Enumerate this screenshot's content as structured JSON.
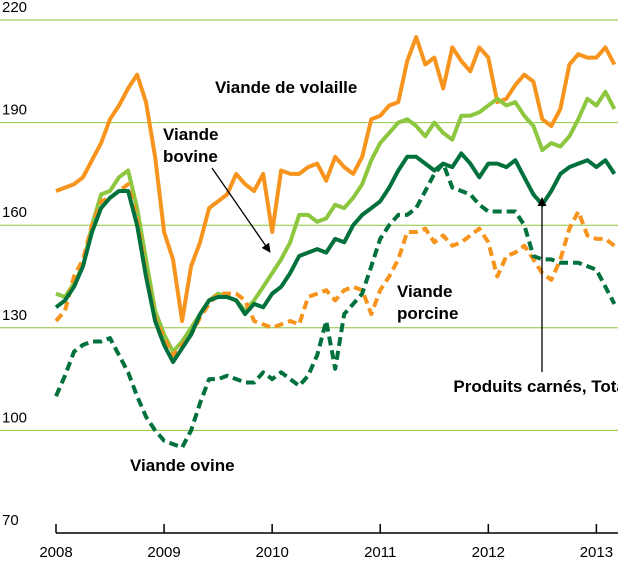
{
  "chart_data": {
    "type": "line",
    "x": [
      2008,
      2008.083,
      2008.167,
      2008.25,
      2008.333,
      2008.417,
      2008.5,
      2008.583,
      2008.667,
      2008.75,
      2008.833,
      2008.917,
      2009,
      2009.083,
      2009.167,
      2009.25,
      2009.333,
      2009.417,
      2009.5,
      2009.583,
      2009.667,
      2009.75,
      2009.833,
      2009.917,
      2010,
      2010.083,
      2010.167,
      2010.25,
      2010.333,
      2010.417,
      2010.5,
      2010.583,
      2010.667,
      2010.75,
      2010.833,
      2010.917,
      2011,
      2011.083,
      2011.167,
      2011.25,
      2011.333,
      2011.417,
      2011.5,
      2011.583,
      2011.667,
      2011.75,
      2011.833,
      2011.917,
      2012,
      2012.083,
      2012.167,
      2012.25,
      2012.333,
      2012.417,
      2012.5,
      2012.583,
      2012.667,
      2012.75,
      2012.833,
      2012.917,
      2013,
      2013.083,
      2013.167
    ],
    "series": [
      {
        "name": "Viande de volaille",
        "color": "#f7941d",
        "dashed": false,
        "values": [
          170,
          171,
          172,
          174,
          179,
          184,
          191,
          195,
          200,
          204,
          196,
          180,
          158,
          150,
          132,
          148,
          155,
          165,
          167,
          169,
          175,
          172,
          170,
          175,
          158,
          176,
          175,
          175,
          177,
          178,
          173,
          180,
          177,
          175,
          180,
          191,
          192,
          195,
          196,
          208,
          215,
          207,
          209,
          200,
          212,
          208,
          205,
          212,
          209,
          196,
          197,
          201,
          204,
          202,
          191,
          189,
          194,
          207,
          210,
          209,
          209,
          212,
          207
        ]
      },
      {
        "name": "Viande bovine",
        "color": "#8dc63f",
        "dashed": false,
        "values": [
          140,
          139,
          143,
          148,
          160,
          169,
          170,
          174,
          176,
          165,
          150,
          135,
          128,
          123,
          126,
          130,
          134,
          138,
          140,
          139,
          138,
          135,
          138,
          142,
          146,
          150,
          155,
          163,
          163,
          161,
          162,
          166,
          165,
          168,
          172,
          179,
          184,
          187,
          190,
          191,
          189,
          186,
          190,
          187,
          185,
          192,
          192,
          193,
          195,
          197,
          195,
          196,
          192,
          189,
          182,
          184,
          183,
          186,
          191,
          197,
          195,
          199,
          194
        ]
      },
      {
        "name": "Viande porcine",
        "color": "#f7941d",
        "dashed": true,
        "values": [
          132,
          135,
          145,
          150,
          160,
          167,
          168,
          170,
          172,
          162,
          146,
          133,
          127,
          122,
          125,
          128,
          133,
          137,
          140,
          140,
          140,
          138,
          132,
          131,
          130,
          131,
          132,
          131,
          139,
          140,
          141,
          138,
          141,
          142,
          141,
          134,
          141,
          145,
          150,
          158,
          158,
          159,
          155,
          157,
          154,
          155,
          157,
          159,
          155,
          145,
          151,
          152,
          154,
          150,
          146,
          144,
          150,
          159,
          164,
          157,
          156,
          156,
          154
        ]
      },
      {
        "name": "Viande ovine",
        "color": "#00703c",
        "dashed": true,
        "values": [
          110,
          116,
          123,
          125,
          126,
          126,
          127,
          122,
          117,
          110,
          104,
          100,
          97,
          96,
          95,
          100,
          108,
          115,
          115,
          116,
          115,
          114,
          114,
          117,
          115,
          117,
          115,
          113,
          116,
          122,
          132,
          118,
          134,
          137,
          140,
          148,
          156,
          160,
          163,
          163,
          165,
          170,
          175,
          178,
          171,
          170,
          169,
          166,
          164,
          164,
          164,
          164,
          160,
          151,
          150,
          150,
          149,
          149,
          149,
          148,
          147,
          142,
          137
        ]
      },
      {
        "name": "Produits carnés, Total",
        "color": "#00703c",
        "dashed": false,
        "values": [
          136,
          138,
          142,
          148,
          158,
          165,
          168,
          170,
          170,
          160,
          145,
          132,
          125,
          120,
          124,
          128,
          134,
          138,
          139,
          139,
          138,
          134,
          137,
          136,
          140,
          142,
          146,
          151,
          152,
          153,
          152,
          156,
          155,
          160,
          163,
          165,
          167,
          171,
          176,
          180,
          180,
          178,
          176,
          178,
          177,
          181,
          178,
          174,
          178,
          178,
          177,
          179,
          174,
          169,
          166,
          170,
          175,
          177,
          178,
          179,
          177,
          179,
          175
        ]
      }
    ],
    "xlim": [
      2008,
      2013.2
    ],
    "xticks": [
      2008,
      2009,
      2010,
      2011,
      2012,
      2013
    ],
    "ylim": [
      70,
      220
    ],
    "yticks": [
      70,
      100,
      130,
      160,
      190,
      220
    ],
    "grid": true
  }
}
